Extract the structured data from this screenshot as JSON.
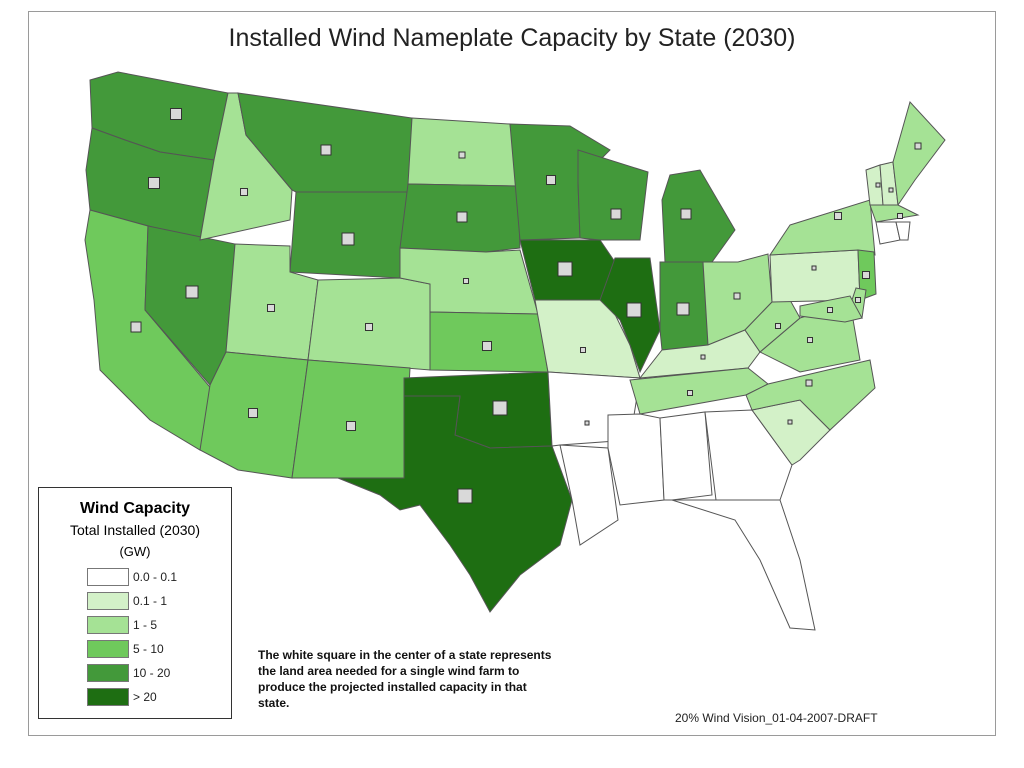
{
  "title": "Installed Wind Nameplate Capacity by State (2030)",
  "legend": {
    "title": "Wind Capacity",
    "subtitle": "Total Installed (2030)",
    "units": "(GW)",
    "classes": [
      {
        "label": "0.0 - 0.1",
        "color": "#ffffff"
      },
      {
        "label": "0.1 - 1",
        "color": "#d3f1c8"
      },
      {
        "label": "1 - 5",
        "color": "#a5e295"
      },
      {
        "label": "5 - 10",
        "color": "#6fc95c"
      },
      {
        "label": "10 - 20",
        "color": "#43993a"
      },
      {
        "label": "> 20",
        "color": "#1e6e12"
      }
    ]
  },
  "states": [
    {
      "name": "WA",
      "class": 4
    },
    {
      "name": "OR",
      "class": 4
    },
    {
      "name": "CA",
      "class": 3
    },
    {
      "name": "NV",
      "class": 4
    },
    {
      "name": "ID",
      "class": 2
    },
    {
      "name": "MT",
      "class": 4
    },
    {
      "name": "WY",
      "class": 4
    },
    {
      "name": "UT",
      "class": 2
    },
    {
      "name": "CO",
      "class": 2
    },
    {
      "name": "AZ",
      "class": 3
    },
    {
      "name": "NM",
      "class": 3
    },
    {
      "name": "ND",
      "class": 2
    },
    {
      "name": "SD",
      "class": 4
    },
    {
      "name": "NE",
      "class": 2
    },
    {
      "name": "KS",
      "class": 3
    },
    {
      "name": "OK",
      "class": 5
    },
    {
      "name": "TX",
      "class": 5
    },
    {
      "name": "MN",
      "class": 4
    },
    {
      "name": "IA",
      "class": 5
    },
    {
      "name": "MO",
      "class": 1
    },
    {
      "name": "AR",
      "class": 0
    },
    {
      "name": "LA",
      "class": 0
    },
    {
      "name": "WI",
      "class": 4
    },
    {
      "name": "IL",
      "class": 5
    },
    {
      "name": "MI",
      "class": 4
    },
    {
      "name": "IN",
      "class": 4
    },
    {
      "name": "OH",
      "class": 2
    },
    {
      "name": "KY",
      "class": 1
    },
    {
      "name": "TN",
      "class": 2
    },
    {
      "name": "MS",
      "class": 0
    },
    {
      "name": "AL",
      "class": 0
    },
    {
      "name": "GA",
      "class": 0
    },
    {
      "name": "FL",
      "class": 0
    },
    {
      "name": "SC",
      "class": 1
    },
    {
      "name": "NC",
      "class": 2
    },
    {
      "name": "VA",
      "class": 2
    },
    {
      "name": "WV",
      "class": 2
    },
    {
      "name": "PA",
      "class": 1
    },
    {
      "name": "NY",
      "class": 2
    },
    {
      "name": "VT",
      "class": 1
    },
    {
      "name": "NH",
      "class": 1
    },
    {
      "name": "ME",
      "class": 2
    },
    {
      "name": "MA",
      "class": 2
    },
    {
      "name": "CT",
      "class": 0
    },
    {
      "name": "RI",
      "class": 0
    },
    {
      "name": "NJ",
      "class": 3
    },
    {
      "name": "DE",
      "class": 2
    },
    {
      "name": "MD",
      "class": 2
    }
  ],
  "note": "The white square in the center of a state represents the land area needed for a single wind farm to produce the projected installed capacity in that state.",
  "credit": "20% Wind Vision_01-04-2007-DRAFT"
}
